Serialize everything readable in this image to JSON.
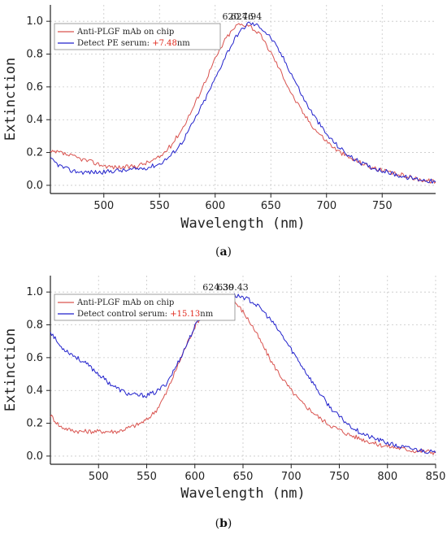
{
  "chart_data": [
    {
      "type": "line",
      "panel_label": "a",
      "xlabel": "Wavelength (nm)",
      "ylabel": "Extinction",
      "xlim": [
        452,
        798
      ],
      "ylim": [
        -0.05,
        1.1
      ],
      "xticks": [
        500,
        550,
        600,
        650,
        700,
        750
      ],
      "yticks": [
        0.0,
        0.2,
        0.4,
        0.6,
        0.8,
        1.0
      ],
      "grid": true,
      "legend_position": "top-left",
      "peaks": [
        {
          "label": "620.46",
          "x": 620.46
        },
        {
          "label": "627.94",
          "x": 627.94
        }
      ],
      "legend": {
        "entry1": "Anti-PLGF mAb on chip",
        "entry2_prefix": "Detect PE serum: ",
        "entry2_shift": "+7.48",
        "entry2_suffix": "nm"
      },
      "series": [
        {
          "name": "Anti-PLGF mAb on chip",
          "color": "#d9534f",
          "points": [
            [
              452,
              0.2
            ],
            [
              460,
              0.2
            ],
            [
              470,
              0.18
            ],
            [
              480,
              0.16
            ],
            [
              490,
              0.14
            ],
            [
              500,
              0.12
            ],
            [
              510,
              0.11
            ],
            [
              520,
              0.11
            ],
            [
              530,
              0.12
            ],
            [
              540,
              0.14
            ],
            [
              550,
              0.17
            ],
            [
              560,
              0.24
            ],
            [
              570,
              0.34
            ],
            [
              580,
              0.47
            ],
            [
              590,
              0.62
            ],
            [
              600,
              0.77
            ],
            [
              610,
              0.9
            ],
            [
              620,
              0.98
            ],
            [
              630,
              0.98
            ],
            [
              640,
              0.92
            ],
            [
              650,
              0.81
            ],
            [
              660,
              0.68
            ],
            [
              670,
              0.54
            ],
            [
              680,
              0.43
            ],
            [
              690,
              0.34
            ],
            [
              700,
              0.27
            ],
            [
              710,
              0.21
            ],
            [
              720,
              0.17
            ],
            [
              730,
              0.14
            ],
            [
              740,
              0.11
            ],
            [
              750,
              0.09
            ],
            [
              760,
              0.07
            ],
            [
              770,
              0.06
            ],
            [
              780,
              0.04
            ],
            [
              790,
              0.03
            ],
            [
              798,
              0.02
            ]
          ]
        },
        {
          "name": "Detect PE serum",
          "color": "#2222cc",
          "points": [
            [
              452,
              0.16
            ],
            [
              460,
              0.12
            ],
            [
              470,
              0.09
            ],
            [
              480,
              0.08
            ],
            [
              490,
              0.08
            ],
            [
              500,
              0.08
            ],
            [
              510,
              0.09
            ],
            [
              520,
              0.09
            ],
            [
              530,
              0.1
            ],
            [
              540,
              0.11
            ],
            [
              550,
              0.13
            ],
            [
              560,
              0.18
            ],
            [
              570,
              0.26
            ],
            [
              580,
              0.38
            ],
            [
              590,
              0.51
            ],
            [
              600,
              0.65
            ],
            [
              610,
              0.8
            ],
            [
              620,
              0.92
            ],
            [
              630,
              0.99
            ],
            [
              640,
              0.97
            ],
            [
              650,
              0.9
            ],
            [
              660,
              0.79
            ],
            [
              670,
              0.66
            ],
            [
              680,
              0.52
            ],
            [
              690,
              0.41
            ],
            [
              700,
              0.31
            ],
            [
              710,
              0.24
            ],
            [
              720,
              0.18
            ],
            [
              730,
              0.14
            ],
            [
              740,
              0.11
            ],
            [
              750,
              0.09
            ],
            [
              760,
              0.07
            ],
            [
              770,
              0.05
            ],
            [
              780,
              0.04
            ],
            [
              790,
              0.03
            ],
            [
              798,
              0.02
            ]
          ]
        }
      ]
    },
    {
      "type": "line",
      "panel_label": "b",
      "xlabel": "Wavelength (nm)",
      "ylabel": "Extinction",
      "xlim": [
        450,
        850
      ],
      "ylim": [
        -0.05,
        1.1
      ],
      "xticks": [
        500,
        550,
        600,
        650,
        700,
        750,
        800,
        850
      ],
      "yticks": [
        0.0,
        0.2,
        0.4,
        0.6,
        0.8,
        1.0
      ],
      "grid": true,
      "legend_position": "top-left",
      "peaks": [
        {
          "label": "624.30",
          "x": 624.3
        },
        {
          "label": "639.43",
          "x": 639.43
        }
      ],
      "legend": {
        "entry1": "Anti-PLGF mAb on chip",
        "entry2_prefix": "Detect control serum: ",
        "entry2_shift": "+15.13",
        "entry2_suffix": "nm"
      },
      "series": [
        {
          "name": "Anti-PLGF mAb on chip",
          "color": "#d9534f",
          "points": [
            [
              450,
              0.25
            ],
            [
              460,
              0.18
            ],
            [
              470,
              0.16
            ],
            [
              480,
              0.15
            ],
            [
              490,
              0.15
            ],
            [
              500,
              0.15
            ],
            [
              510,
              0.15
            ],
            [
              520,
              0.15
            ],
            [
              530,
              0.17
            ],
            [
              540,
              0.19
            ],
            [
              550,
              0.22
            ],
            [
              560,
              0.28
            ],
            [
              570,
              0.38
            ],
            [
              580,
              0.52
            ],
            [
              590,
              0.66
            ],
            [
              600,
              0.79
            ],
            [
              610,
              0.89
            ],
            [
              620,
              0.95
            ],
            [
              630,
              0.98
            ],
            [
              640,
              0.95
            ],
            [
              650,
              0.88
            ],
            [
              660,
              0.79
            ],
            [
              670,
              0.68
            ],
            [
              680,
              0.57
            ],
            [
              690,
              0.48
            ],
            [
              700,
              0.4
            ],
            [
              710,
              0.33
            ],
            [
              720,
              0.28
            ],
            [
              730,
              0.23
            ],
            [
              740,
              0.19
            ],
            [
              750,
              0.16
            ],
            [
              760,
              0.13
            ],
            [
              770,
              0.11
            ],
            [
              780,
              0.09
            ],
            [
              790,
              0.07
            ],
            [
              800,
              0.06
            ],
            [
              810,
              0.05
            ],
            [
              820,
              0.04
            ],
            [
              830,
              0.03
            ],
            [
              840,
              0.03
            ],
            [
              850,
              0.02
            ]
          ]
        },
        {
          "name": "Detect control serum",
          "color": "#2222cc",
          "points": [
            [
              450,
              0.76
            ],
            [
              460,
              0.67
            ],
            [
              470,
              0.63
            ],
            [
              480,
              0.59
            ],
            [
              490,
              0.55
            ],
            [
              500,
              0.5
            ],
            [
              510,
              0.45
            ],
            [
              520,
              0.41
            ],
            [
              530,
              0.38
            ],
            [
              540,
              0.37
            ],
            [
              550,
              0.37
            ],
            [
              560,
              0.39
            ],
            [
              570,
              0.44
            ],
            [
              580,
              0.54
            ],
            [
              590,
              0.66
            ],
            [
              600,
              0.79
            ],
            [
              610,
              0.88
            ],
            [
              620,
              0.93
            ],
            [
              630,
              0.96
            ],
            [
              640,
              0.98
            ],
            [
              650,
              0.97
            ],
            [
              660,
              0.94
            ],
            [
              670,
              0.89
            ],
            [
              680,
              0.82
            ],
            [
              690,
              0.74
            ],
            [
              700,
              0.65
            ],
            [
              710,
              0.56
            ],
            [
              720,
              0.47
            ],
            [
              730,
              0.38
            ],
            [
              740,
              0.3
            ],
            [
              750,
              0.24
            ],
            [
              760,
              0.19
            ],
            [
              770,
              0.15
            ],
            [
              780,
              0.12
            ],
            [
              790,
              0.1
            ],
            [
              800,
              0.08
            ],
            [
              810,
              0.06
            ],
            [
              820,
              0.05
            ],
            [
              830,
              0.04
            ],
            [
              840,
              0.03
            ],
            [
              850,
              0.02
            ]
          ]
        }
      ]
    }
  ]
}
